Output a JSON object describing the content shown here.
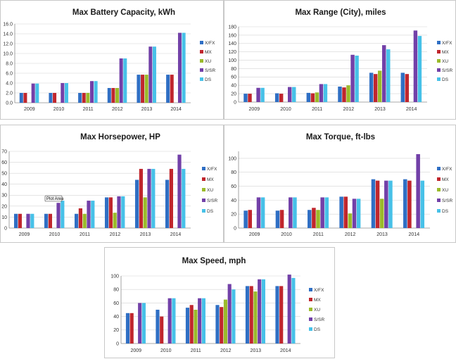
{
  "colors": {
    "X/FX": "#2f6fc4",
    "MX": "#c0262d",
    "XU": "#9bbb2b",
    "S/SR": "#7240a8",
    "DS": "#47c1e8"
  },
  "chart_data": [
    {
      "type": "bar",
      "title": "Max Battery Capacity, kWh",
      "categories": [
        "2009",
        "2010",
        "2011",
        "2012",
        "2013",
        "2014"
      ],
      "ylim": [
        0,
        16
      ],
      "yticks": [
        "0.0",
        "2.0",
        "4.0",
        "6.0",
        "8.0",
        "10.0",
        "12.0",
        "14.0",
        "16.0"
      ],
      "series": [
        {
          "name": "X/FX",
          "values": [
            2,
            2,
            2,
            3,
            5.7,
            5.7
          ]
        },
        {
          "name": "MX",
          "values": [
            2,
            2,
            2,
            3,
            5.7,
            5.7
          ]
        },
        {
          "name": "XU",
          "values": [
            null,
            null,
            2,
            3,
            5.7,
            null
          ]
        },
        {
          "name": "S/SR",
          "values": [
            3.9,
            4,
            4.4,
            9,
            11.4,
            14.2
          ]
        },
        {
          "name": "DS",
          "values": [
            3.9,
            4,
            4.4,
            9,
            11.4,
            14.2
          ]
        }
      ]
    },
    {
      "type": "bar",
      "title": "Max Range (City), miles",
      "categories": [
        "2009",
        "2010",
        "2011",
        "2012",
        "2013",
        "2014"
      ],
      "ylim": [
        0,
        180
      ],
      "yticks": [
        "0",
        "20",
        "40",
        "60",
        "80",
        "100",
        "120",
        "140",
        "160",
        "180"
      ],
      "series": [
        {
          "name": "X/FX",
          "values": [
            20,
            21,
            22,
            37,
            70,
            70
          ]
        },
        {
          "name": "MX",
          "values": [
            20,
            20,
            21,
            35,
            67,
            67
          ]
        },
        {
          "name": "XU",
          "values": [
            null,
            null,
            23,
            40,
            75,
            null
          ]
        },
        {
          "name": "S/SR",
          "values": [
            34,
            36,
            43,
            113,
            136,
            171
          ]
        },
        {
          "name": "DS",
          "values": [
            34,
            36,
            43,
            111,
            126,
            158
          ]
        }
      ]
    },
    {
      "type": "bar",
      "title": "Max Horsepower, HP",
      "categories": [
        "2009",
        "2010",
        "2011",
        "2012",
        "2013",
        "2014"
      ],
      "ylim": [
        0,
        70
      ],
      "yticks": [
        "0",
        "10",
        "20",
        "30",
        "40",
        "50",
        "60",
        "70"
      ],
      "series": [
        {
          "name": "X/FX",
          "values": [
            13,
            13,
            13,
            28,
            44,
            44
          ]
        },
        {
          "name": "MX",
          "values": [
            13,
            13,
            18,
            28,
            54,
            54
          ]
        },
        {
          "name": "XU",
          "values": [
            null,
            null,
            13,
            14,
            28,
            null
          ]
        },
        {
          "name": "S/SR",
          "values": [
            13,
            23,
            25,
            29,
            54,
            67
          ]
        },
        {
          "name": "DS",
          "values": [
            13,
            25,
            25,
            29,
            54,
            54
          ]
        }
      ],
      "annotation": "Plot Area"
    },
    {
      "type": "bar",
      "title": "Max Torque, ft-lbs",
      "categories": [
        "2009",
        "2010",
        "2011",
        "2012",
        "2013",
        "2014"
      ],
      "ylim": [
        0,
        110
      ],
      "yticks": [
        "0",
        "20",
        "40",
        "60",
        "80",
        "100"
      ],
      "series": [
        {
          "name": "X/FX",
          "values": [
            25,
            25,
            26,
            45,
            70,
            70
          ]
        },
        {
          "name": "MX",
          "values": [
            26,
            26,
            29,
            45,
            68,
            68
          ]
        },
        {
          "name": "XU",
          "values": [
            null,
            null,
            26,
            21,
            42,
            null
          ]
        },
        {
          "name": "S/SR",
          "values": [
            44,
            44,
            44,
            42,
            68,
            106
          ]
        },
        {
          "name": "DS",
          "values": [
            44,
            44,
            44,
            42,
            68,
            68
          ]
        }
      ]
    },
    {
      "type": "bar",
      "title": "Max Speed, mph",
      "categories": [
        "2009",
        "2010",
        "2011",
        "2012",
        "2013",
        "2014"
      ],
      "ylim": [
        0,
        100
      ],
      "yticks": [
        "0",
        "20",
        "40",
        "60",
        "80",
        "100"
      ],
      "series": [
        {
          "name": "X/FX",
          "values": [
            45,
            50,
            53,
            57,
            85,
            85
          ]
        },
        {
          "name": "MX",
          "values": [
            45,
            40,
            57,
            54,
            85,
            85
          ]
        },
        {
          "name": "XU",
          "values": [
            null,
            null,
            50,
            65,
            77,
            null
          ]
        },
        {
          "name": "S/SR",
          "values": [
            60,
            67,
            67,
            88,
            95,
            102
          ]
        },
        {
          "name": "DS",
          "values": [
            60,
            67,
            67,
            80,
            95,
            97
          ]
        }
      ]
    }
  ]
}
